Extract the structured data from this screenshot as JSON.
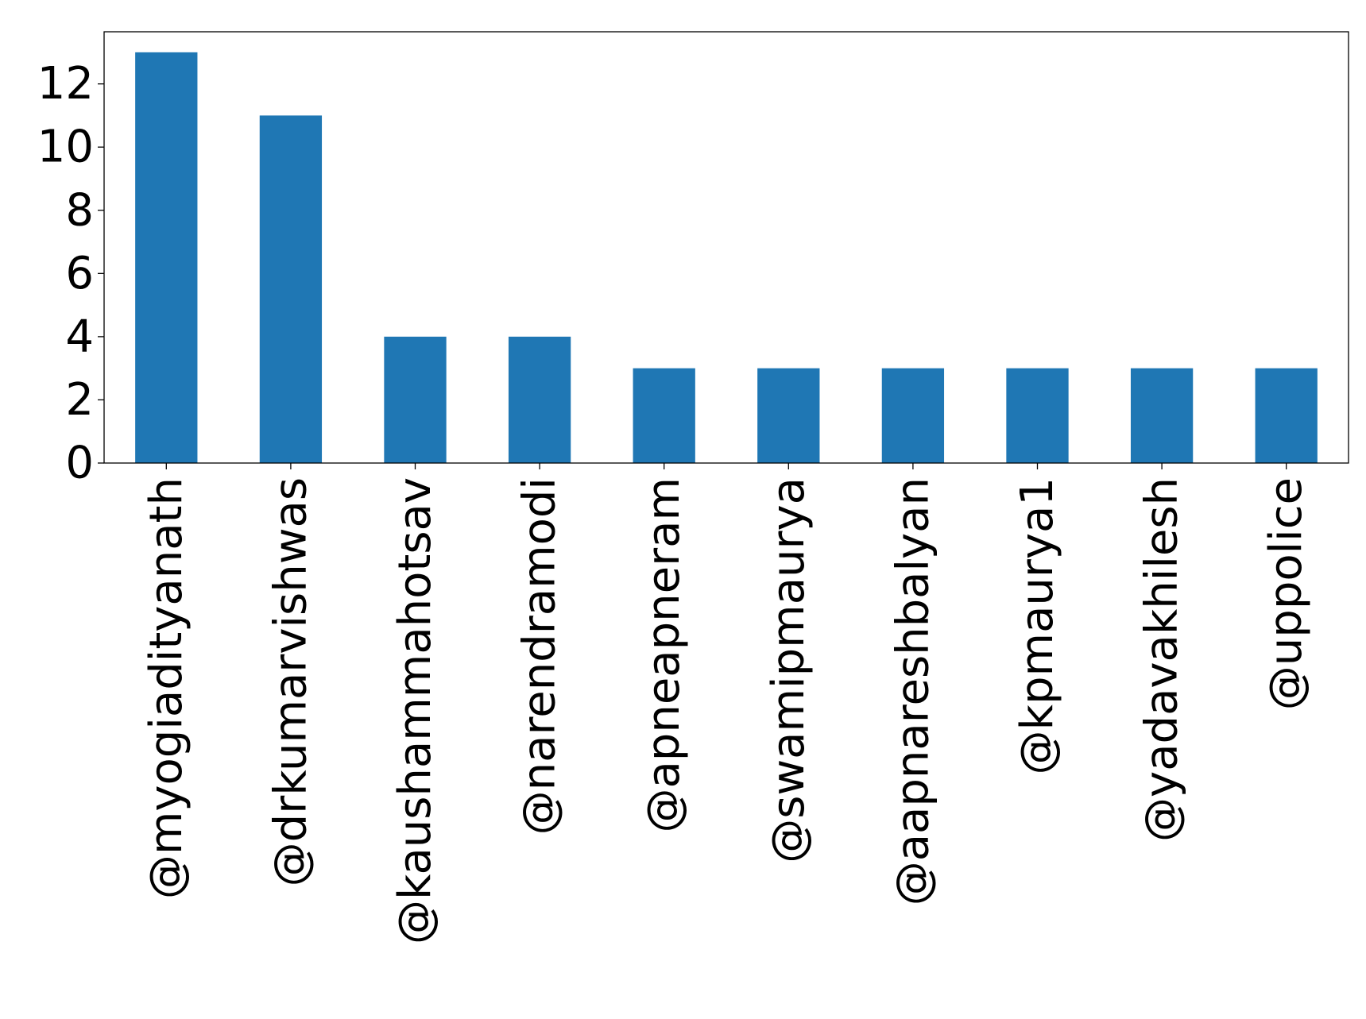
{
  "chart_data": {
    "type": "bar",
    "title": "",
    "xlabel": "",
    "ylabel": "",
    "categories": [
      "@myogiadityanath",
      "@drkumarvishwas",
      "@kaushammahotsav",
      "@narendramodi",
      "@apneapneram",
      "@swamipmaurya",
      "@aapnareshbalyan",
      "@kpmaurya1",
      "@yadavakhilesh",
      "@uppolice"
    ],
    "values": [
      13,
      11,
      4,
      4,
      3,
      3,
      3,
      3,
      3,
      3
    ],
    "ylim": [
      0,
      13.65
    ],
    "yticks": [
      0,
      2,
      4,
      6,
      8,
      10,
      12
    ],
    "grid": false,
    "legend": "none",
    "bar_color": "#1f77b4"
  }
}
